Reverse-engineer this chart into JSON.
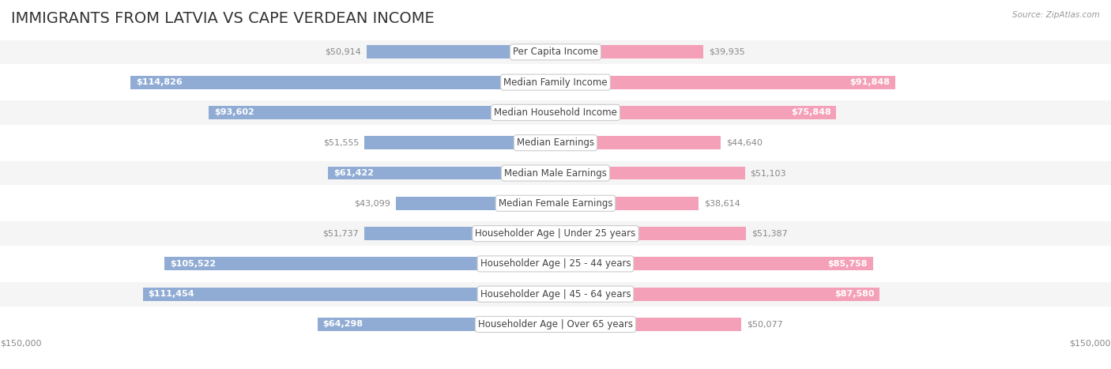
{
  "title": "IMMIGRANTS FROM LATVIA VS CAPE VERDEAN INCOME",
  "source": "Source: ZipAtlas.com",
  "categories": [
    "Per Capita Income",
    "Median Family Income",
    "Median Household Income",
    "Median Earnings",
    "Median Male Earnings",
    "Median Female Earnings",
    "Householder Age | Under 25 years",
    "Householder Age | 25 - 44 years",
    "Householder Age | 45 - 64 years",
    "Householder Age | Over 65 years"
  ],
  "latvia_values": [
    50914,
    114826,
    93602,
    51555,
    61422,
    43099,
    51737,
    105522,
    111454,
    64298
  ],
  "capeverde_values": [
    39935,
    91848,
    75848,
    44640,
    51103,
    38614,
    51387,
    85758,
    87580,
    50077
  ],
  "latvia_color": "#90acd4",
  "capeverde_color": "#f4a0b8",
  "latvia_label_color": "#5a7fa8",
  "capeverde_label_color": "#e07090",
  "latvia_solid_color": "#6b9ecf",
  "capeverde_solid_color": "#f08aab",
  "row_bg_odd": "#f5f5f5",
  "row_bg_even": "#ffffff",
  "max_value": 150000,
  "center_label_bg": "#ffffff",
  "center_label_border": "#cccccc",
  "title_fontsize": 14,
  "label_fontsize": 8.5,
  "value_fontsize": 8,
  "legend_fontsize": 9,
  "axis_label": "$150,000"
}
